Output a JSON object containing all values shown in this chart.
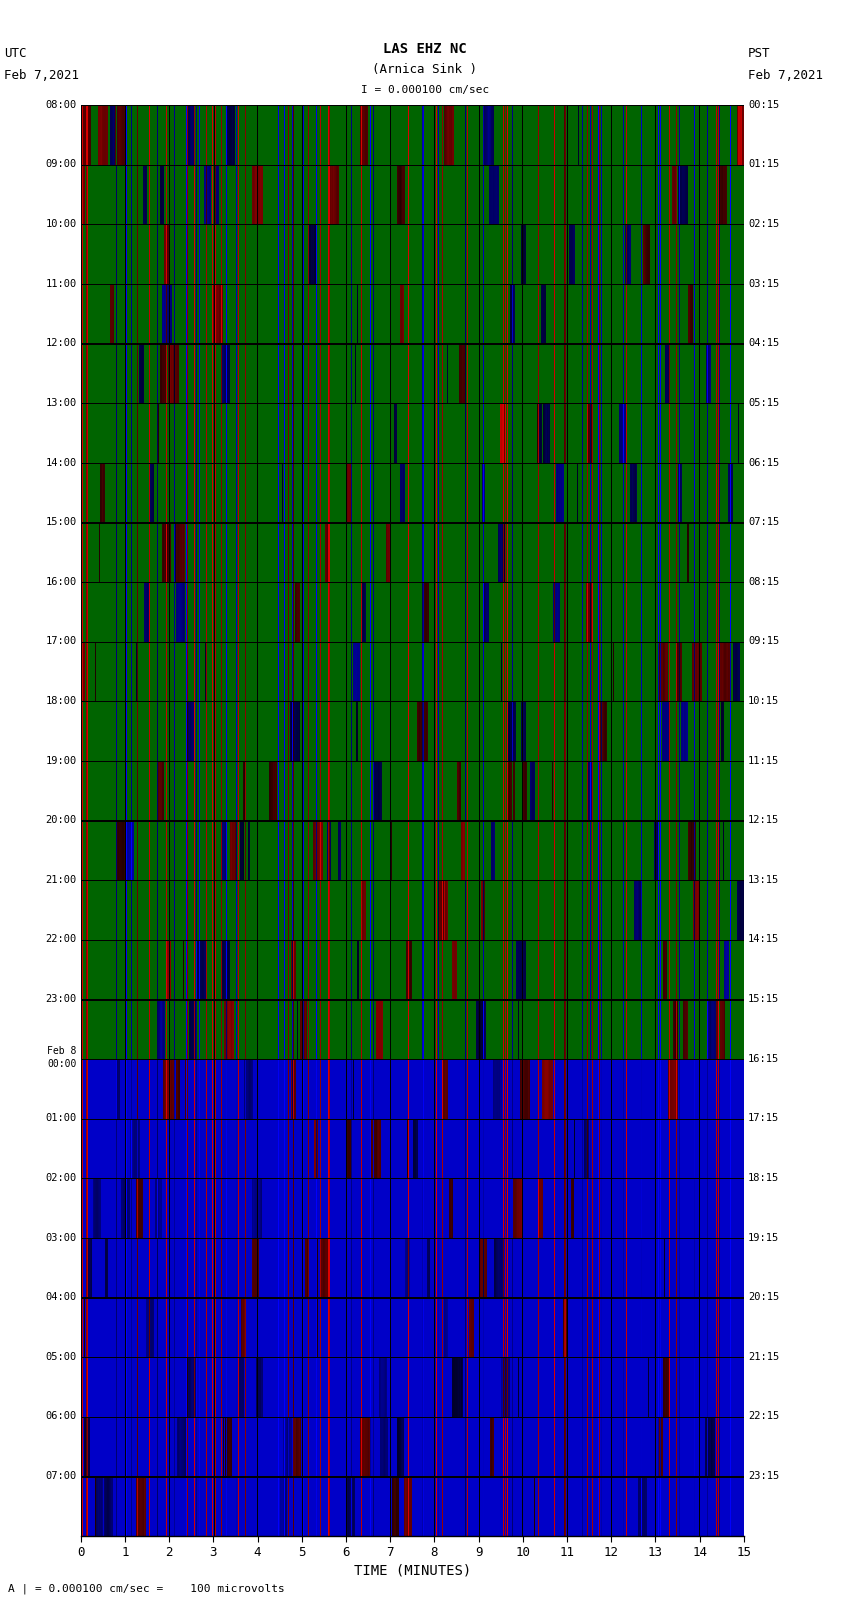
{
  "title_line1": "LAS EHZ NC",
  "title_line2": "(Arnica Sink )",
  "title_line3": "I = 0.000100 cm/sec",
  "left_header_line1": "UTC",
  "left_header_line2": "Feb 7,2021",
  "right_header_line1": "PST",
  "right_header_line2": "Feb 7,2021",
  "xlabel": "TIME (MINUTES)",
  "footer": "A | = 0.000100 cm/sec =    100 microvolts",
  "utc_labels": [
    "08:00",
    "09:00",
    "10:00",
    "11:00",
    "12:00",
    "13:00",
    "14:00",
    "15:00",
    "16:00",
    "17:00",
    "18:00",
    "19:00",
    "20:00",
    "21:00",
    "22:00",
    "23:00",
    "Feb 8\n00:00",
    "01:00",
    "02:00",
    "03:00",
    "04:00",
    "05:00",
    "06:00",
    "07:00"
  ],
  "pst_labels": [
    "00:15",
    "01:15",
    "02:15",
    "03:15",
    "04:15",
    "05:15",
    "06:15",
    "07:15",
    "08:15",
    "09:15",
    "10:15",
    "11:15",
    "12:15",
    "13:15",
    "14:15",
    "15:15",
    "16:15",
    "17:15",
    "18:15",
    "19:15",
    "20:15",
    "21:15",
    "22:15",
    "23:15"
  ],
  "x_ticks": [
    0,
    1,
    2,
    3,
    4,
    5,
    6,
    7,
    8,
    9,
    10,
    11,
    12,
    13,
    14,
    15
  ],
  "time_minutes": 15,
  "num_traces": 24,
  "green_rows": 16,
  "blue_rows": 8,
  "fig_bg": "#ffffff",
  "green_color": [
    0,
    100,
    0
  ],
  "blue_color": [
    0,
    0,
    200
  ],
  "red_color": [
    220,
    0,
    0
  ],
  "black_color": [
    0,
    0,
    0
  ]
}
